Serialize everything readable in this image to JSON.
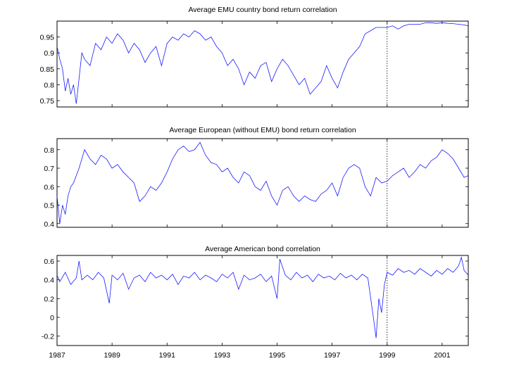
{
  "chart_data": [
    {
      "type": "line",
      "title": "Average EMU country bond return correlation",
      "xlabel": "",
      "ylabel": "",
      "xlim": [
        1987.0,
        2001.95
      ],
      "ylim": [
        0.73,
        1.0
      ],
      "yticks": [
        "0.75",
        "0.8",
        "0.85",
        "0.9",
        "0.95"
      ],
      "ytick_values": [
        0.75,
        0.8,
        0.85,
        0.9,
        0.95
      ],
      "xticks": [],
      "euro_introduction_marker": 1999.0,
      "color": "#1a1aff",
      "grid": false,
      "series": [
        {
          "x": [
            1987.0,
            1987.1,
            1987.2,
            1987.3,
            1987.4,
            1987.5,
            1987.6,
            1987.7,
            1987.8,
            1987.9,
            1988.0,
            1988.2,
            1988.4,
            1988.6,
            1988.8,
            1989.0,
            1989.2,
            1989.4,
            1989.6,
            1989.8,
            1990.0,
            1990.2,
            1990.4,
            1990.6,
            1990.8,
            1991.0,
            1991.2,
            1991.4,
            1991.6,
            1991.8,
            1992.0,
            1992.2,
            1992.4,
            1992.6,
            1992.8,
            1993.0,
            1993.2,
            1993.4,
            1993.6,
            1993.8,
            1994.0,
            1994.2,
            1994.4,
            1994.6,
            1994.8,
            1995.0,
            1995.2,
            1995.4,
            1995.6,
            1995.8,
            1996.0,
            1996.2,
            1996.4,
            1996.6,
            1996.8,
            1997.0,
            1997.2,
            1997.4,
            1997.6,
            1997.8,
            1998.0,
            1998.2,
            1998.4,
            1998.6,
            1998.8,
            1999.0,
            1999.2,
            1999.4,
            1999.6,
            1999.8,
            2000.0,
            2000.2,
            2000.4,
            2000.6,
            2000.8,
            2001.0,
            2001.2,
            2001.4,
            2001.6,
            2001.8,
            2001.95
          ],
          "values": [
            0.92,
            0.88,
            0.85,
            0.78,
            0.82,
            0.77,
            0.8,
            0.74,
            0.82,
            0.9,
            0.88,
            0.86,
            0.93,
            0.91,
            0.95,
            0.93,
            0.96,
            0.94,
            0.9,
            0.93,
            0.91,
            0.87,
            0.9,
            0.92,
            0.86,
            0.93,
            0.95,
            0.94,
            0.96,
            0.95,
            0.97,
            0.96,
            0.94,
            0.95,
            0.92,
            0.9,
            0.86,
            0.88,
            0.85,
            0.8,
            0.84,
            0.82,
            0.86,
            0.87,
            0.81,
            0.85,
            0.88,
            0.86,
            0.83,
            0.8,
            0.82,
            0.77,
            0.79,
            0.81,
            0.86,
            0.82,
            0.79,
            0.84,
            0.88,
            0.9,
            0.92,
            0.96,
            0.97,
            0.98,
            0.98,
            0.98,
            0.985,
            0.975,
            0.985,
            0.99,
            0.99,
            0.99,
            0.995,
            0.995,
            0.993,
            0.995,
            0.993,
            0.992,
            0.99,
            0.988,
            0.985
          ]
        }
      ]
    },
    {
      "type": "line",
      "title": "Average European (without EMU) bond return correlation",
      "xlabel": "",
      "ylabel": "",
      "xlim": [
        1987.0,
        2001.95
      ],
      "ylim": [
        0.38,
        0.86
      ],
      "yticks": [
        "0.4",
        "0.5",
        "0.6",
        "0.7",
        "0.8"
      ],
      "ytick_values": [
        0.4,
        0.5,
        0.6,
        0.7,
        0.8
      ],
      "xticks": [],
      "euro_introduction_marker": 1999.0,
      "color": "#1a1aff",
      "grid": false,
      "series": [
        {
          "x": [
            1987.0,
            1987.1,
            1987.2,
            1987.3,
            1987.4,
            1987.5,
            1987.6,
            1987.8,
            1988.0,
            1988.2,
            1988.4,
            1988.6,
            1988.8,
            1989.0,
            1989.2,
            1989.4,
            1989.6,
            1989.8,
            1990.0,
            1990.2,
            1990.4,
            1990.6,
            1990.8,
            1991.0,
            1991.2,
            1991.4,
            1991.6,
            1991.8,
            1992.0,
            1992.2,
            1992.4,
            1992.6,
            1992.8,
            1993.0,
            1993.2,
            1993.4,
            1993.6,
            1993.8,
            1994.0,
            1994.2,
            1994.4,
            1994.6,
            1994.8,
            1995.0,
            1995.2,
            1995.4,
            1995.6,
            1995.8,
            1996.0,
            1996.2,
            1996.4,
            1996.6,
            1996.8,
            1997.0,
            1997.2,
            1997.4,
            1997.6,
            1997.8,
            1998.0,
            1998.2,
            1998.4,
            1998.6,
            1998.8,
            1999.0,
            1999.2,
            1999.4,
            1999.6,
            1999.8,
            2000.0,
            2000.2,
            2000.4,
            2000.6,
            2000.8,
            2001.0,
            2001.2,
            2001.4,
            2001.6,
            2001.8,
            2001.95
          ],
          "values": [
            0.55,
            0.4,
            0.5,
            0.45,
            0.55,
            0.6,
            0.62,
            0.7,
            0.8,
            0.75,
            0.72,
            0.77,
            0.75,
            0.7,
            0.72,
            0.68,
            0.65,
            0.62,
            0.52,
            0.55,
            0.6,
            0.58,
            0.62,
            0.68,
            0.75,
            0.8,
            0.82,
            0.79,
            0.8,
            0.84,
            0.77,
            0.73,
            0.72,
            0.68,
            0.7,
            0.65,
            0.62,
            0.68,
            0.66,
            0.6,
            0.58,
            0.63,
            0.55,
            0.5,
            0.58,
            0.6,
            0.55,
            0.52,
            0.55,
            0.53,
            0.52,
            0.56,
            0.58,
            0.62,
            0.55,
            0.65,
            0.7,
            0.72,
            0.7,
            0.6,
            0.55,
            0.65,
            0.62,
            0.63,
            0.66,
            0.68,
            0.7,
            0.65,
            0.68,
            0.72,
            0.7,
            0.74,
            0.76,
            0.8,
            0.78,
            0.75,
            0.7,
            0.65,
            0.66
          ]
        }
      ]
    },
    {
      "type": "line",
      "title": "Average American bond correlation",
      "xlabel": "",
      "ylabel": "",
      "xlim": [
        1987.0,
        2001.95
      ],
      "ylim": [
        -0.3,
        0.66
      ],
      "yticks": [
        "-0.2",
        "0",
        "0.2",
        "0.4",
        "0.6"
      ],
      "ytick_values": [
        -0.2,
        0,
        0.2,
        0.4,
        0.6
      ],
      "xticks": [
        "1987",
        "1989",
        "1991",
        "1993",
        "1995",
        "1997",
        "1999",
        "2001"
      ],
      "xtick_values": [
        1987,
        1989,
        1991,
        1993,
        1995,
        1997,
        1999,
        2001
      ],
      "euro_introduction_marker": 1999.0,
      "color": "#1a1aff",
      "grid": false,
      "series": [
        {
          "x": [
            1987.0,
            1987.1,
            1987.3,
            1987.5,
            1987.7,
            1987.8,
            1987.9,
            1988.1,
            1988.3,
            1988.5,
            1988.7,
            1988.9,
            1989.0,
            1989.2,
            1989.4,
            1989.6,
            1989.8,
            1990.0,
            1990.2,
            1990.4,
            1990.6,
            1990.8,
            1991.0,
            1991.2,
            1991.4,
            1991.6,
            1991.8,
            1992.0,
            1992.2,
            1992.4,
            1992.6,
            1992.8,
            1993.0,
            1993.2,
            1993.4,
            1993.6,
            1993.8,
            1994.0,
            1994.2,
            1994.4,
            1994.6,
            1994.8,
            1995.0,
            1995.1,
            1995.3,
            1995.5,
            1995.7,
            1995.9,
            1996.1,
            1996.3,
            1996.5,
            1996.7,
            1996.9,
            1997.1,
            1997.3,
            1997.5,
            1997.7,
            1997.9,
            1998.1,
            1998.3,
            1998.5,
            1998.6,
            1998.7,
            1998.8,
            1998.9,
            1999.0,
            1999.2,
            1999.4,
            1999.6,
            1999.8,
            2000.0,
            2000.2,
            2000.4,
            2000.6,
            2000.8,
            2001.0,
            2001.2,
            2001.4,
            2001.6,
            2001.7,
            2001.8,
            2001.95
          ],
          "values": [
            0.45,
            0.38,
            0.48,
            0.35,
            0.42,
            0.6,
            0.4,
            0.45,
            0.4,
            0.48,
            0.42,
            0.15,
            0.45,
            0.4,
            0.47,
            0.3,
            0.42,
            0.45,
            0.38,
            0.48,
            0.42,
            0.45,
            0.4,
            0.46,
            0.35,
            0.44,
            0.42,
            0.48,
            0.4,
            0.45,
            0.42,
            0.38,
            0.46,
            0.42,
            0.48,
            0.3,
            0.45,
            0.4,
            0.42,
            0.46,
            0.38,
            0.44,
            0.2,
            0.62,
            0.45,
            0.4,
            0.48,
            0.42,
            0.45,
            0.38,
            0.46,
            0.42,
            0.44,
            0.4,
            0.47,
            0.42,
            0.45,
            0.4,
            0.46,
            0.42,
            0.0,
            -0.22,
            0.2,
            0.05,
            0.35,
            0.48,
            0.45,
            0.52,
            0.48,
            0.5,
            0.46,
            0.52,
            0.48,
            0.44,
            0.5,
            0.46,
            0.52,
            0.48,
            0.55,
            0.64,
            0.5,
            0.45
          ]
        }
      ]
    }
  ]
}
